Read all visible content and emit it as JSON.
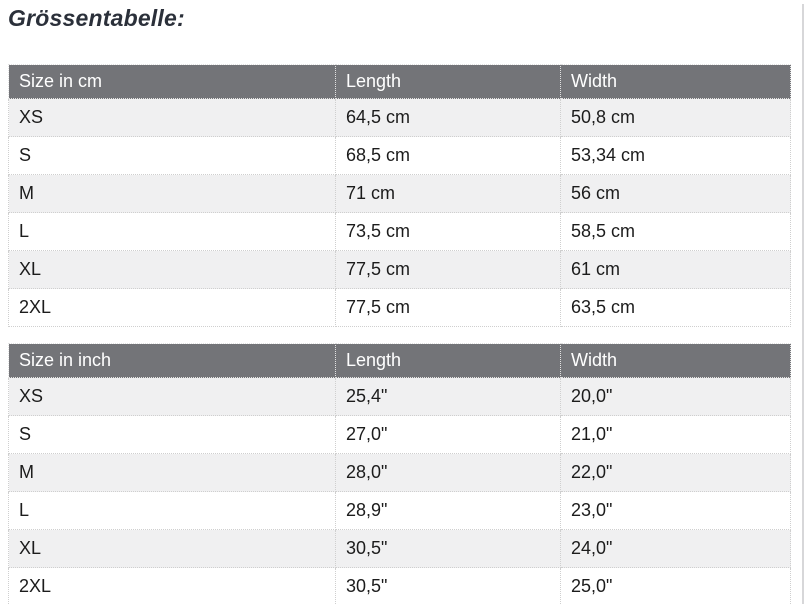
{
  "page": {
    "title": "Grössentabelle:"
  },
  "tables": [
    {
      "name": "size-table-cm",
      "headers": [
        "Size in cm",
        "Length",
        "Width"
      ],
      "rows": [
        [
          "XS",
          "64,5 cm",
          "50,8 cm"
        ],
        [
          "S",
          "68,5 cm",
          "53,34 cm"
        ],
        [
          "M",
          "71 cm",
          "56 cm"
        ],
        [
          "L",
          "73,5 cm",
          "58,5 cm"
        ],
        [
          "XL",
          "77,5 cm",
          "61 cm"
        ],
        [
          "2XL",
          "77,5 cm",
          "63,5 cm"
        ]
      ]
    },
    {
      "name": "size-table-inch",
      "headers": [
        "Size in inch",
        "Length",
        "Width"
      ],
      "rows": [
        [
          "XS",
          "25,4\"",
          "20,0\""
        ],
        [
          "S",
          "27,0\"",
          "21,0\""
        ],
        [
          "M",
          "28,0\"",
          "22,0\""
        ],
        [
          "L",
          "28,9\"",
          "23,0\""
        ],
        [
          "XL",
          "30,5\"",
          "24,0\""
        ],
        [
          "2XL",
          "30,5\"",
          "25,0\""
        ]
      ]
    }
  ],
  "colors": {
    "header_bg": "#737478",
    "header_fg": "#ffffff",
    "row_alt_bg": "#f0f0f1",
    "row_bg": "#ffffff",
    "border_dot": "#cfcfcf",
    "title_fg": "#2b303a",
    "cell_fg": "#1c1c1c",
    "page_rule": "#d7d7d9"
  }
}
